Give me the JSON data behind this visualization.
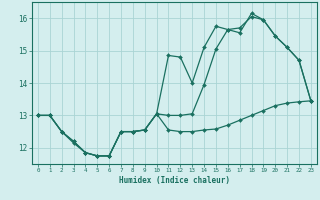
{
  "xlabel": "Humidex (Indice chaleur)",
  "ylabel": "",
  "background_color": "#d4eeee",
  "grid_color": "#aad4d4",
  "line_color": "#1a7060",
  "xlim": [
    -0.5,
    23.5
  ],
  "ylim": [
    11.5,
    16.5
  ],
  "xticks": [
    0,
    1,
    2,
    3,
    4,
    5,
    6,
    7,
    8,
    9,
    10,
    11,
    12,
    13,
    14,
    15,
    16,
    17,
    18,
    19,
    20,
    21,
    22,
    23
  ],
  "yticks": [
    12,
    13,
    14,
    15,
    16
  ],
  "line1_x": [
    0,
    1,
    2,
    3,
    4,
    5,
    6,
    7,
    8,
    9,
    10,
    11,
    12,
    13,
    14,
    15,
    16,
    17,
    18,
    19,
    20,
    21,
    22,
    23
  ],
  "line1_y": [
    13.0,
    13.0,
    12.5,
    12.2,
    11.85,
    11.75,
    11.75,
    12.5,
    12.5,
    12.55,
    13.05,
    13.0,
    13.0,
    13.05,
    13.95,
    15.05,
    15.65,
    15.7,
    16.05,
    15.95,
    15.45,
    15.1,
    14.7,
    13.45
  ],
  "line2_x": [
    0,
    1,
    2,
    3,
    4,
    5,
    6,
    7,
    8,
    9,
    10,
    11,
    12,
    13,
    14,
    15,
    16,
    17,
    18,
    19,
    20,
    21,
    22,
    23
  ],
  "line2_y": [
    13.0,
    13.0,
    12.5,
    12.15,
    11.85,
    11.75,
    11.75,
    12.5,
    12.5,
    12.55,
    13.05,
    14.85,
    14.8,
    14.0,
    15.1,
    15.75,
    15.65,
    15.55,
    16.15,
    15.95,
    15.45,
    15.1,
    14.7,
    13.45
  ],
  "line3_x": [
    0,
    1,
    2,
    3,
    4,
    5,
    6,
    7,
    8,
    9,
    10,
    11,
    12,
    13,
    14,
    15,
    16,
    17,
    18,
    19,
    20,
    21,
    22,
    23
  ],
  "line3_y": [
    13.0,
    13.0,
    12.5,
    12.2,
    11.85,
    11.75,
    11.75,
    12.5,
    12.5,
    12.55,
    13.05,
    12.55,
    12.5,
    12.5,
    12.55,
    12.58,
    12.7,
    12.85,
    13.0,
    13.15,
    13.3,
    13.38,
    13.42,
    13.45
  ]
}
